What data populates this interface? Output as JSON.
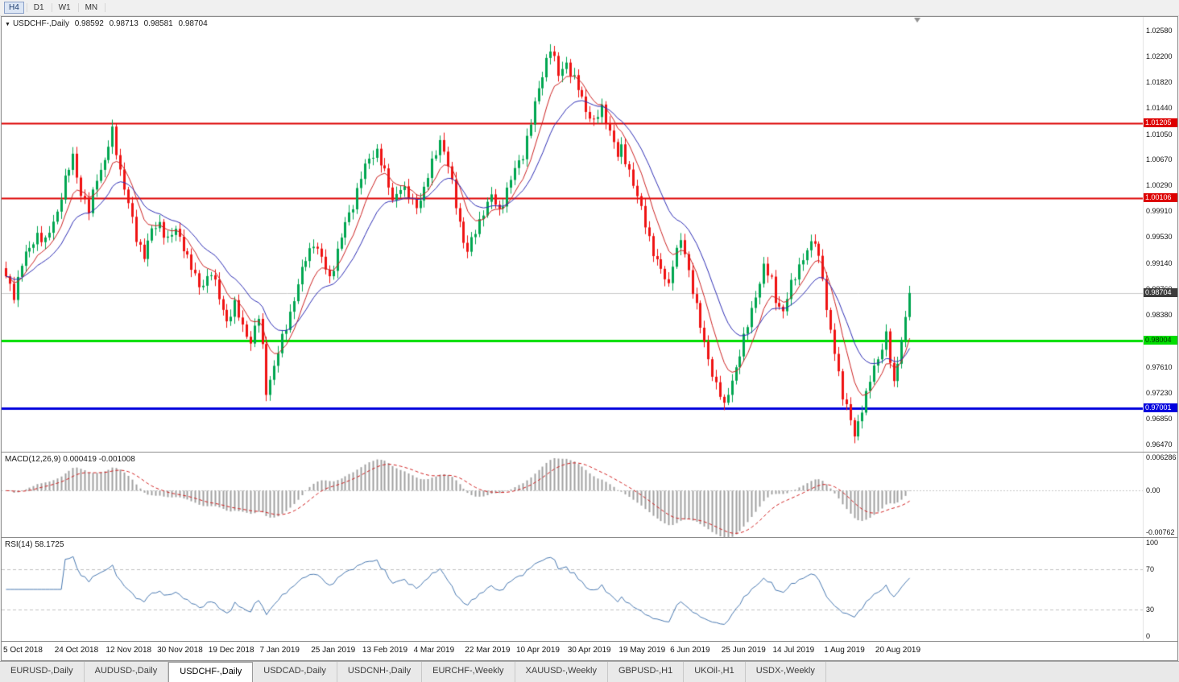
{
  "app": {
    "timeframes": [
      {
        "label": "H4",
        "active": true
      },
      {
        "label": "D1",
        "active": false
      },
      {
        "label": "W1",
        "active": false
      },
      {
        "label": "MN",
        "active": false
      }
    ]
  },
  "chart": {
    "info": {
      "collapse_icon": "▼",
      "symbol": "USDCHF-,Daily",
      "open": "0.98592",
      "high": "0.98713",
      "low": "0.98581",
      "close": "0.98704"
    },
    "price_axis_ticks": [
      "1.02580",
      "1.02200",
      "1.01820",
      "1.01440",
      "1.01050",
      "1.00670",
      "1.00290",
      "0.99910",
      "0.99530",
      "0.99140",
      "0.98760",
      "0.98380",
      "0.98000",
      "0.97610",
      "0.97230",
      "0.96850",
      "0.96470"
    ],
    "scale": {
      "max": 1.0278,
      "min": 0.9636
    }
  },
  "chart_data": {
    "type": "candlestick",
    "title": "USDCHF-,Daily",
    "bars": 230,
    "bar_spacing": 4.9,
    "x_label_step": 13,
    "x_labels": [
      "5 Oct 2018",
      "24 Oct 2018",
      "12 Nov 2018",
      "30 Nov 2018",
      "19 Dec 2018",
      "7 Jan 2019",
      "25 Jan 2019",
      "13 Feb 2019",
      "4 Mar 2019",
      "22 Mar 2019",
      "10 Apr 2019",
      "30 Apr 2019",
      "19 May 2019",
      "6 Jun 2019",
      "25 Jun 2019",
      "14 Jul 2019",
      "1 Aug 2019",
      "20 Aug 2019"
    ],
    "price_anchors": [
      [
        0,
        0.9895
      ],
      [
        2,
        0.9868
      ],
      [
        4,
        0.9914
      ],
      [
        6,
        0.9936
      ],
      [
        8,
        0.9958
      ],
      [
        10,
        0.9944
      ],
      [
        13,
        0.9992
      ],
      [
        15,
        1.0036
      ],
      [
        17,
        1.0072
      ],
      [
        19,
        1.0018
      ],
      [
        21,
        0.999
      ],
      [
        23,
        1.0042
      ],
      [
        25,
        1.0066
      ],
      [
        27,
        1.0108
      ],
      [
        29,
        1.0052
      ],
      [
        31,
        1.0002
      ],
      [
        33,
        0.995
      ],
      [
        35,
        0.9928
      ],
      [
        37,
        0.9962
      ],
      [
        39,
        0.9972
      ],
      [
        41,
        0.995
      ],
      [
        43,
        0.9962
      ],
      [
        45,
        0.994
      ],
      [
        47,
        0.9908
      ],
      [
        49,
        0.9878
      ],
      [
        52,
        0.9902
      ],
      [
        54,
        0.9862
      ],
      [
        56,
        0.983
      ],
      [
        58,
        0.9852
      ],
      [
        60,
        0.982
      ],
      [
        62,
        0.98
      ],
      [
        64,
        0.9834
      ],
      [
        65,
        0.9788
      ],
      [
        66,
        0.9726
      ],
      [
        68,
        0.9762
      ],
      [
        70,
        0.9802
      ],
      [
        72,
        0.9842
      ],
      [
        74,
        0.9882
      ],
      [
        76,
        0.9922
      ],
      [
        78,
        0.9946
      ],
      [
        80,
        0.992
      ],
      [
        82,
        0.9892
      ],
      [
        84,
        0.9932
      ],
      [
        86,
        0.9972
      ],
      [
        88,
        1.0002
      ],
      [
        90,
        1.0042
      ],
      [
        92,
        1.0068
      ],
      [
        94,
        1.0082
      ],
      [
        96,
        1.0046
      ],
      [
        98,
        1.0008
      ],
      [
        100,
        1.0028
      ],
      [
        102,
        1.0012
      ],
      [
        104,
        1.0
      ],
      [
        106,
        1.0022
      ],
      [
        108,
        1.0062
      ],
      [
        110,
        1.0098
      ],
      [
        112,
        1.0058
      ],
      [
        114,
        1.0002
      ],
      [
        116,
        0.9948
      ],
      [
        117,
        0.993
      ],
      [
        119,
        0.9962
      ],
      [
        121,
        0.9992
      ],
      [
        123,
        1.0012
      ],
      [
        125,
        0.9992
      ],
      [
        127,
        1.0022
      ],
      [
        129,
        1.0052
      ],
      [
        131,
        1.0076
      ],
      [
        133,
        1.0122
      ],
      [
        135,
        1.0172
      ],
      [
        137,
        1.0216
      ],
      [
        138,
        1.0232
      ],
      [
        140,
        1.0192
      ],
      [
        142,
        1.0212
      ],
      [
        143,
        1.0196
      ],
      [
        145,
        1.0172
      ],
      [
        147,
        1.0142
      ],
      [
        149,
        1.0122
      ],
      [
        151,
        1.0142
      ],
      [
        153,
        1.0112
      ],
      [
        155,
        1.0072
      ],
      [
        156,
        1.0082
      ],
      [
        158,
        1.0052
      ],
      [
        160,
        1.0012
      ],
      [
        162,
        0.9972
      ],
      [
        164,
        0.9932
      ],
      [
        166,
        0.9902
      ],
      [
        168,
        0.9882
      ],
      [
        169,
        0.9918
      ],
      [
        171,
        0.9948
      ],
      [
        173,
        0.9902
      ],
      [
        175,
        0.9852
      ],
      [
        177,
        0.9792
      ],
      [
        179,
        0.9752
      ],
      [
        181,
        0.9722
      ],
      [
        182,
        0.97
      ],
      [
        184,
        0.9742
      ],
      [
        186,
        0.9782
      ],
      [
        188,
        0.9822
      ],
      [
        190,
        0.9868
      ],
      [
        192,
        0.9908
      ],
      [
        194,
        0.9888
      ],
      [
        195,
        0.9862
      ],
      [
        197,
        0.9842
      ],
      [
        199,
        0.9882
      ],
      [
        201,
        0.9912
      ],
      [
        203,
        0.9932
      ],
      [
        205,
        0.9948
      ],
      [
        207,
        0.9898
      ],
      [
        208,
        0.9842
      ],
      [
        210,
        0.9782
      ],
      [
        212,
        0.9722
      ],
      [
        214,
        0.9682
      ],
      [
        215,
        0.9656
      ],
      [
        217,
        0.9702
      ],
      [
        219,
        0.9742
      ],
      [
        221,
        0.9772
      ],
      [
        223,
        0.9812
      ],
      [
        225,
        0.9732
      ],
      [
        227,
        0.9802
      ],
      [
        229,
        0.98704
      ]
    ],
    "levels": [
      {
        "price": 1.01205,
        "label": "1.01205",
        "color": "#dd0000",
        "width": 2,
        "badge_bg": "#dd0000",
        "badge_fg": "#ffffff"
      },
      {
        "price": 1.00106,
        "label": "1.00106",
        "color": "#dd0000",
        "width": 2,
        "badge_bg": "#dd0000",
        "badge_fg": "#ffffff"
      },
      {
        "price": 0.98704,
        "label": "0.98704",
        "color": "#c8c8c8",
        "width": 1,
        "badge_bg": "#3c3c3c",
        "badge_fg": "#ffffff"
      },
      {
        "price": 0.98004,
        "label": "0.98004",
        "color": "#00dd00",
        "width": 3,
        "badge_bg": "#00dd00",
        "badge_fg": "#003300"
      },
      {
        "price": 0.97001,
        "label": "0.97001",
        "color": "#0000dd",
        "width": 3,
        "badge_bg": "#0000dd",
        "badge_fg": "#ffffff"
      }
    ],
    "colors": {
      "up": "#00a650",
      "down": "#ef1212",
      "ma_fast": "#cc2222",
      "ma_slow": "#2d2db4",
      "wick_up": "#00a650",
      "wick_down": "#ef1212"
    }
  },
  "macd": {
    "label": "MACD(12,26,9) 0.000419 -0.001008",
    "params": [
      12,
      26,
      9
    ],
    "axis": [
      {
        "value": 0.006286,
        "label": "0.006286"
      },
      {
        "value": 0,
        "label": "0.00"
      },
      {
        "value": -0.00762,
        "label": "-0.00762"
      }
    ],
    "scale": {
      "max": 0.0065,
      "min": -0.0079
    },
    "colors": {
      "histogram": "#a0a0a0",
      "signal": "#d02020"
    }
  },
  "rsi": {
    "label": "RSI(14) 58.1725",
    "period": 14,
    "levels": [
      70,
      30
    ],
    "axis": [
      {
        "value": 100,
        "label": "100"
      },
      {
        "value": 70,
        "label": "70"
      },
      {
        "value": 30,
        "label": "30"
      },
      {
        "value": 0,
        "label": "0"
      }
    ],
    "scale": {
      "max": 102,
      "min": -2
    },
    "colors": {
      "line": "#4878b0",
      "level": "#c0c0c0"
    }
  },
  "tabs": [
    {
      "label": "EURUSD-,Daily",
      "active": false
    },
    {
      "label": "AUDUSD-,Daily",
      "active": false
    },
    {
      "label": "USDCHF-,Daily",
      "active": true
    },
    {
      "label": "USDCAD-,Daily",
      "active": false
    },
    {
      "label": "USDCNH-,Daily",
      "active": false
    },
    {
      "label": "EURCHF-,Weekly",
      "active": false
    },
    {
      "label": "XAUUSD-,Weekly",
      "active": false
    },
    {
      "label": "GBPUSD-,H1",
      "active": false
    },
    {
      "label": "UKOil-,H1",
      "active": false
    },
    {
      "label": "USDX-,Weekly",
      "active": false
    }
  ]
}
